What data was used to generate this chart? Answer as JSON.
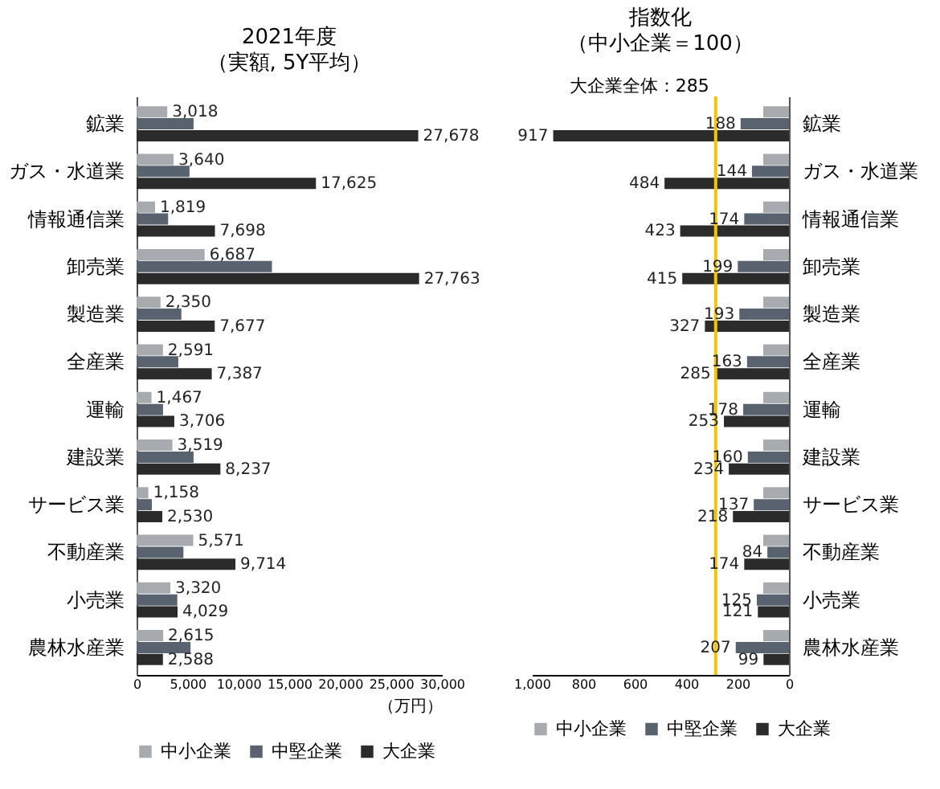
{
  "chart_data": [
    {
      "type": "bar",
      "orientation": "horizontal",
      "title": "2021年度",
      "subtitle": "（実額, 5Y平均）",
      "xlabel": "（万円）",
      "legend": "bottom",
      "grid": false,
      "categories": [
        "鉱業",
        "ガス・水道業",
        "情報通信業",
        "卸売業",
        "製造業",
        "全産業",
        "運輸",
        "建設業",
        "サービス業",
        "不動産業",
        "小売業",
        "農林水産業"
      ],
      "xlim": [
        0,
        30000
      ],
      "xticks": [
        0,
        {
          "value": 5000,
          "label": "5,000"
        },
        {
          "value": 10000,
          "label": "10,000"
        },
        {
          "value": 15000,
          "label": "15,000"
        },
        {
          "value": 20000,
          "label": "20,000"
        },
        {
          "value": 25000,
          "label": "25,000"
        },
        {
          "value": 30000,
          "label": "30,000"
        }
      ],
      "series": [
        {
          "name": "中小企業",
          "color": "#a7aaae",
          "values": [
            3018,
            3640,
            1819,
            6687,
            2350,
            2591,
            1467,
            3519,
            1158,
            5571,
            3320,
            2615
          ],
          "value_labels": [
            "3,018",
            "3,640",
            "1,819",
            "6,687",
            "2,350",
            "2,591",
            "1,467",
            "3,519",
            "1,158",
            "5,571",
            "3,320",
            "2,615"
          ]
        },
        {
          "name": "中堅企業",
          "color": "#59636f",
          "values": [
            5600,
            5200,
            3100,
            13300,
            4400,
            4100,
            2600,
            5600,
            1500,
            4600,
            4000,
            5300
          ]
        },
        {
          "name": "大企業",
          "color": "#2b2b2b",
          "values": [
            27678,
            17625,
            7698,
            27763,
            7677,
            7387,
            3706,
            8237,
            2530,
            9714,
            4029,
            2588
          ],
          "value_labels": [
            "27,678",
            "17,625",
            "7,698",
            "27,763",
            "7,677",
            "7,387",
            "3,706",
            "8,237",
            "2,530",
            "9,714",
            "4,029",
            "2,588"
          ]
        }
      ]
    },
    {
      "type": "bar",
      "orientation": "horizontal",
      "title": "指数化",
      "subtitle": "（中小企業＝100）",
      "legend": "bottom",
      "grid": false,
      "categories": [
        "鉱業",
        "ガス・水道業",
        "情報通信業",
        "卸売業",
        "製造業",
        "全産業",
        "運輸",
        "建設業",
        "サービス業",
        "不動産業",
        "小売業",
        "農林水産業"
      ],
      "xlim": [
        1000,
        0
      ],
      "xticks": [
        {
          "value": 1000,
          "label": "1,000"
        },
        800,
        600,
        400,
        200,
        0
      ],
      "ref_lines": [
        {
          "axis": "x",
          "value": 285,
          "label": "大企業全体：285",
          "color": "#f5c400"
        }
      ],
      "series": [
        {
          "name": "中小企業",
          "color": "#a7aaae",
          "values": [
            100,
            100,
            100,
            100,
            100,
            100,
            100,
            100,
            100,
            100,
            100,
            100
          ]
        },
        {
          "name": "中堅企業",
          "color": "#59636f",
          "values": [
            188,
            144,
            174,
            199,
            193,
            163,
            178,
            160,
            137,
            84,
            125,
            207
          ],
          "value_labels": [
            "188",
            "144",
            "174",
            "199",
            "193",
            "163",
            "178",
            "160",
            "137",
            "84",
            "125",
            "207"
          ]
        },
        {
          "name": "大企業",
          "color": "#2b2b2b",
          "values": [
            917,
            484,
            423,
            415,
            327,
            285,
            253,
            234,
            218,
            174,
            121,
            99
          ],
          "value_labels": [
            "917",
            "484",
            "423",
            "415",
            "327",
            "285",
            "253",
            "234",
            "218",
            "174",
            "121",
            "99"
          ]
        }
      ]
    }
  ]
}
